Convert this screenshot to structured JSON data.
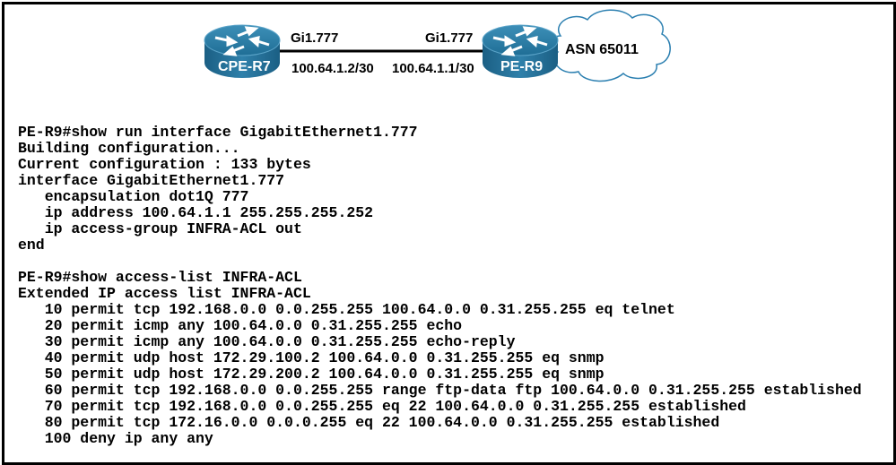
{
  "diagram": {
    "routers": [
      {
        "name": "CPE-R7",
        "interface": "Gi1.777",
        "ip": "100.64.1.2/30"
      },
      {
        "name": "PE-R9",
        "interface": "Gi1.777",
        "ip": "100.64.1.1/30"
      }
    ],
    "cloud_label": "ASN 65011",
    "router_color": "#1f6e96"
  },
  "cli_lines": [
    "PE-R9#show run interface GigabitEthernet1.777",
    "Building configuration...",
    "Current configuration : 133 bytes",
    "interface GigabitEthernet1.777",
    "   encapsulation dot1Q 777",
    "   ip address 100.64.1.1 255.255.255.252",
    "   ip access-group INFRA-ACL out",
    "end",
    "",
    "PE-R9#show access-list INFRA-ACL",
    "Extended IP access list INFRA-ACL",
    "   10 permit tcp 192.168.0.0 0.0.255.255 100.64.0.0 0.31.255.255 eq telnet",
    "   20 permit icmp any 100.64.0.0 0.31.255.255 echo",
    "   30 permit icmp any 100.64.0.0 0.31.255.255 echo-reply",
    "   40 permit udp host 172.29.100.2 100.64.0.0 0.31.255.255 eq snmp",
    "   50 permit udp host 172.29.200.2 100.64.0.0 0.31.255.255 eq snmp",
    "   60 permit tcp 192.168.0.0 0.0.255.255 range ftp-data ftp 100.64.0.0 0.31.255.255 established",
    "   70 permit tcp 192.168.0.0 0.0.255.255 eq 22 100.64.0.0 0.31.255.255 established",
    "   80 permit tcp 172.16.0.0 0.0.0.255 eq 22 100.64.0.0 0.31.255.255 established",
    "   100 deny ip any any"
  ]
}
